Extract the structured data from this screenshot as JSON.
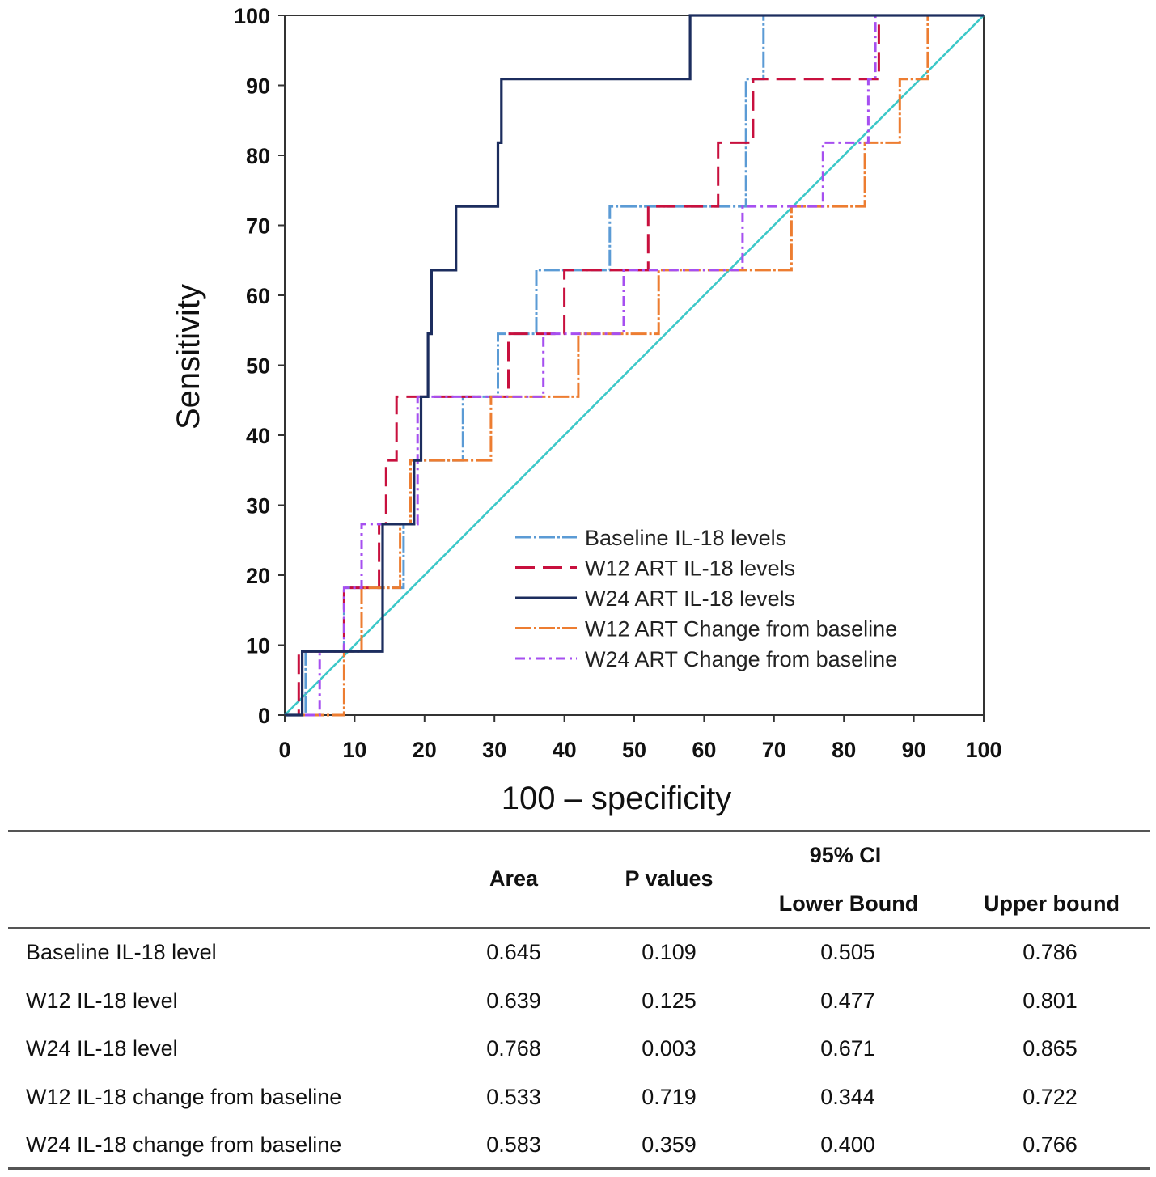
{
  "chart_data": {
    "type": "line",
    "title": "",
    "xlabel": "100 – specificity",
    "ylabel": "Sensitivity",
    "xlim": [
      0,
      100
    ],
    "ylim": [
      0,
      100
    ],
    "xticks": [
      "0",
      "10",
      "20",
      "30",
      "40",
      "50",
      "60",
      "70",
      "80",
      "90",
      "100"
    ],
    "yticks": [
      "0",
      "10",
      "20",
      "30",
      "40",
      "50",
      "60",
      "70",
      "80",
      "90",
      "100"
    ],
    "legend_position": "bottom-right",
    "series": [
      {
        "name": "Baseline IL-18  levels",
        "color": "#5b9bd5",
        "dash": "long-dash-dot",
        "points": [
          [
            0,
            0
          ],
          [
            3,
            0
          ],
          [
            3,
            9.1
          ],
          [
            8.5,
            9.1
          ],
          [
            8.5,
            18.2
          ],
          [
            17,
            18.2
          ],
          [
            17,
            27.3
          ],
          [
            18.5,
            27.3
          ],
          [
            18.5,
            36.4
          ],
          [
            25.5,
            36.4
          ],
          [
            25.5,
            45.5
          ],
          [
            30.5,
            45.5
          ],
          [
            30.5,
            54.5
          ],
          [
            36,
            54.5
          ],
          [
            36,
            63.6
          ],
          [
            46.5,
            63.6
          ],
          [
            46.5,
            72.7
          ],
          [
            66,
            72.7
          ],
          [
            66,
            90.9
          ],
          [
            68.5,
            90.9
          ],
          [
            68.5,
            100
          ],
          [
            100,
            100
          ]
        ]
      },
      {
        "name": "W12 ART IL-18  levels",
        "color": "#c8103e",
        "dash": "dashed",
        "points": [
          [
            0,
            0
          ],
          [
            2,
            0
          ],
          [
            2,
            9.1
          ],
          [
            8.5,
            9.1
          ],
          [
            8.5,
            18.2
          ],
          [
            13.5,
            18.2
          ],
          [
            13.5,
            27.3
          ],
          [
            14.5,
            27.3
          ],
          [
            14.5,
            36.4
          ],
          [
            16,
            36.4
          ],
          [
            16,
            45.5
          ],
          [
            32,
            45.5
          ],
          [
            32,
            54.5
          ],
          [
            40,
            54.5
          ],
          [
            40,
            63.6
          ],
          [
            52,
            63.6
          ],
          [
            52,
            72.7
          ],
          [
            62,
            72.7
          ],
          [
            62,
            81.8
          ],
          [
            67,
            81.8
          ],
          [
            67,
            90.9
          ],
          [
            85,
            90.9
          ],
          [
            85,
            100
          ],
          [
            100,
            100
          ]
        ]
      },
      {
        "name": "W24 ART IL-18  levels",
        "color": "#1c2d5e",
        "dash": "solid",
        "points": [
          [
            0,
            0
          ],
          [
            2.5,
            0
          ],
          [
            2.5,
            9.1
          ],
          [
            14,
            9.1
          ],
          [
            14,
            27.3
          ],
          [
            18.5,
            27.3
          ],
          [
            18.5,
            36.4
          ],
          [
            19.5,
            36.4
          ],
          [
            19.5,
            45.5
          ],
          [
            20.5,
            45.5
          ],
          [
            20.5,
            54.5
          ],
          [
            21,
            54.5
          ],
          [
            21,
            63.6
          ],
          [
            24.5,
            63.6
          ],
          [
            24.5,
            72.7
          ],
          [
            30.5,
            72.7
          ],
          [
            30.5,
            81.8
          ],
          [
            31,
            81.8
          ],
          [
            31,
            90.9
          ],
          [
            58,
            90.9
          ],
          [
            58,
            100
          ],
          [
            100,
            100
          ]
        ]
      },
      {
        "name": "W12 ART Change  from  baseline",
        "color": "#ed7d31",
        "dash": "long-dash-dot",
        "points": [
          [
            0,
            0
          ],
          [
            8.5,
            0
          ],
          [
            8.5,
            9.1
          ],
          [
            11,
            9.1
          ],
          [
            11,
            18.2
          ],
          [
            16.5,
            18.2
          ],
          [
            16.5,
            27.3
          ],
          [
            18,
            27.3
          ],
          [
            18,
            36.4
          ],
          [
            29.5,
            36.4
          ],
          [
            29.5,
            45.5
          ],
          [
            42,
            45.5
          ],
          [
            42,
            54.5
          ],
          [
            53.5,
            54.5
          ],
          [
            53.5,
            63.6
          ],
          [
            72.5,
            63.6
          ],
          [
            72.5,
            72.7
          ],
          [
            83,
            72.7
          ],
          [
            83,
            81.8
          ],
          [
            88,
            81.8
          ],
          [
            88,
            90.9
          ],
          [
            92,
            90.9
          ],
          [
            92,
            100
          ],
          [
            100,
            100
          ]
        ]
      },
      {
        "name": "W24 ART Change  from  baseline",
        "color": "#a64ff0",
        "dash": "dash-dot",
        "points": [
          [
            0,
            0
          ],
          [
            5,
            0
          ],
          [
            5,
            9.1
          ],
          [
            8.5,
            9.1
          ],
          [
            8.5,
            18.2
          ],
          [
            11,
            18.2
          ],
          [
            11,
            27.3
          ],
          [
            19,
            27.3
          ],
          [
            19,
            45.5
          ],
          [
            37,
            45.5
          ],
          [
            37,
            54.5
          ],
          [
            48.5,
            54.5
          ],
          [
            48.5,
            63.6
          ],
          [
            65.5,
            63.6
          ],
          [
            65.5,
            72.7
          ],
          [
            77,
            72.7
          ],
          [
            77,
            81.8
          ],
          [
            83.5,
            81.8
          ],
          [
            83.5,
            90.9
          ],
          [
            84.5,
            90.9
          ],
          [
            84.5,
            100
          ],
          [
            100,
            100
          ]
        ]
      }
    ],
    "reference_line": {
      "color": "#3cc8c8",
      "from": [
        0,
        0
      ],
      "to": [
        100,
        100
      ]
    }
  },
  "table": {
    "headers": {
      "area": "Area",
      "p_values": "P values",
      "ci": "95%  CI",
      "lower": "Lower Bound",
      "upper": "Upper bound"
    },
    "rows": [
      {
        "name": "Baseline IL-18  level",
        "area": "0.645",
        "p": "0.109",
        "lower": "0.505",
        "upper": "0.786"
      },
      {
        "name": "W12 IL-18  level",
        "area": "0.639",
        "p": "0.125",
        "lower": "0.477",
        "upper": "0.801"
      },
      {
        "name": "W24 IL-18  level",
        "area": "0.768",
        "p": "0.003",
        "lower": "0.671",
        "upper": "0.865"
      },
      {
        "name": "W12 IL-18  change  from  baseline",
        "area": "0.533",
        "p": "0.719",
        "lower": "0.344",
        "upper": "0.722"
      },
      {
        "name": "W24 IL-18  change  from  baseline",
        "area": "0.583",
        "p": "0.359",
        "lower": "0.400",
        "upper": "0.766"
      }
    ]
  }
}
